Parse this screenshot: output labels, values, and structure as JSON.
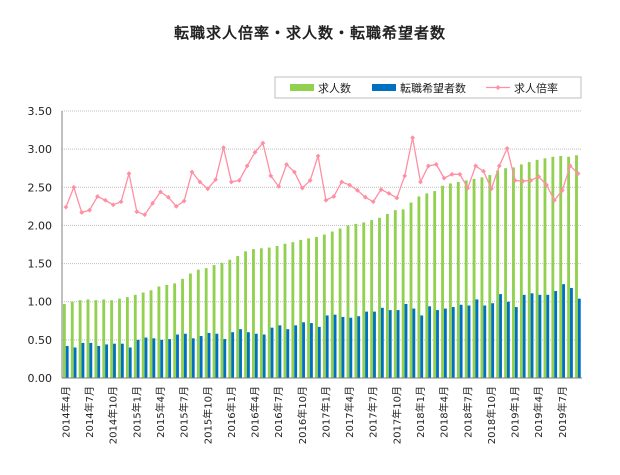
{
  "page": {
    "title": "転職求人倍率・求人数・転職希望者数"
  },
  "colors": {
    "jobs": "#92D050",
    "seekers": "#0070C0",
    "ratio": "#FF8FA3",
    "grid": "#BFBFBF",
    "axis": "#808080"
  },
  "chart_data": {
    "type": "bar",
    "legend": {
      "position": "top-right",
      "entries": [
        "求人数",
        "転職希望者数",
        "求人倍率"
      ]
    },
    "y_ticks": [
      "0.00",
      "0.50",
      "1.00",
      "1.50",
      "2.00",
      "2.50",
      "3.00",
      "3.50"
    ],
    "ylim": [
      0,
      3.5
    ],
    "grid": true,
    "x_tick_labels": [
      "2014年4月",
      "2014年7月",
      "2014年10月",
      "2015年1月",
      "2015年4月",
      "2015年7月",
      "2015年10月",
      "2016年1月",
      "2016年4月",
      "2016年7月",
      "2016年10月",
      "2017年1月",
      "2017年4月",
      "2017年7月",
      "2017年10月",
      "2018年1月",
      "2018年4月",
      "2018年7月",
      "2018年10月",
      "2019年1月",
      "2019年4月",
      "2019年7月"
    ],
    "categories": [
      "2014-04",
      "2014-05",
      "2014-06",
      "2014-07",
      "2014-08",
      "2014-09",
      "2014-10",
      "2014-11",
      "2014-12",
      "2015-01",
      "2015-02",
      "2015-03",
      "2015-04",
      "2015-05",
      "2015-06",
      "2015-07",
      "2015-08",
      "2015-09",
      "2015-10",
      "2015-11",
      "2015-12",
      "2016-01",
      "2016-02",
      "2016-03",
      "2016-04",
      "2016-05",
      "2016-06",
      "2016-07",
      "2016-08",
      "2016-09",
      "2016-10",
      "2016-11",
      "2016-12",
      "2017-01",
      "2017-02",
      "2017-03",
      "2017-04",
      "2017-05",
      "2017-06",
      "2017-07",
      "2017-08",
      "2017-09",
      "2017-10",
      "2017-11",
      "2017-12",
      "2018-01",
      "2018-02",
      "2018-03",
      "2018-04",
      "2018-05",
      "2018-06",
      "2018-07",
      "2018-08",
      "2018-09",
      "2018-10",
      "2018-11",
      "2018-12",
      "2019-01",
      "2019-02",
      "2019-03",
      "2019-04",
      "2019-05",
      "2019-06",
      "2019-07",
      "2019-08",
      "2019-09"
    ],
    "series": [
      {
        "name": "求人数",
        "type": "bar",
        "values": [
          0.97,
          1.0,
          1.02,
          1.03,
          1.02,
          1.03,
          1.02,
          1.04,
          1.06,
          1.09,
          1.12,
          1.15,
          1.2,
          1.22,
          1.24,
          1.3,
          1.37,
          1.42,
          1.44,
          1.48,
          1.51,
          1.55,
          1.6,
          1.66,
          1.69,
          1.7,
          1.71,
          1.73,
          1.76,
          1.78,
          1.81,
          1.83,
          1.85,
          1.88,
          1.92,
          1.96,
          2.0,
          2.02,
          2.04,
          2.07,
          2.1,
          2.15,
          2.2,
          2.21,
          2.3,
          2.38,
          2.42,
          2.45,
          2.52,
          2.55,
          2.57,
          2.59,
          2.61,
          2.63,
          2.66,
          2.72,
          2.75,
          2.76,
          2.8,
          2.83,
          2.86,
          2.88,
          2.9,
          2.91,
          2.9,
          2.92
        ]
      },
      {
        "name": "転職希望者数",
        "type": "bar",
        "values": [
          0.42,
          0.4,
          0.46,
          0.46,
          0.42,
          0.44,
          0.45,
          0.45,
          0.4,
          0.5,
          0.53,
          0.52,
          0.5,
          0.51,
          0.57,
          0.58,
          0.52,
          0.55,
          0.59,
          0.58,
          0.51,
          0.6,
          0.64,
          0.6,
          0.58,
          0.57,
          0.66,
          0.69,
          0.64,
          0.69,
          0.73,
          0.72,
          0.67,
          0.82,
          0.83,
          0.8,
          0.79,
          0.81,
          0.87,
          0.87,
          0.92,
          0.89,
          0.89,
          0.97,
          0.91,
          0.82,
          0.94,
          0.89,
          0.91,
          0.93,
          0.96,
          0.95,
          1.03,
          0.95,
          0.98,
          1.1,
          1.0,
          0.93,
          1.09,
          1.11,
          1.09,
          1.09,
          1.14,
          1.23,
          1.18,
          1.04
        ]
      },
      {
        "name": "求人倍率",
        "type": "line",
        "values": [
          2.24,
          2.5,
          2.17,
          2.2,
          2.38,
          2.33,
          2.27,
          2.31,
          2.68,
          2.18,
          2.14,
          2.29,
          2.44,
          2.37,
          2.25,
          2.32,
          2.7,
          2.57,
          2.48,
          2.6,
          3.02,
          2.57,
          2.59,
          2.78,
          2.96,
          3.08,
          2.65,
          2.51,
          2.8,
          2.7,
          2.49,
          2.59,
          2.91,
          2.33,
          2.38,
          2.57,
          2.53,
          2.46,
          2.37,
          2.31,
          2.47,
          2.42,
          2.36,
          2.65,
          3.15,
          2.57,
          2.78,
          2.8,
          2.62,
          2.67,
          2.67,
          2.49,
          2.78,
          2.71,
          2.48,
          2.78,
          3.01,
          2.59,
          2.58,
          2.59,
          2.64,
          2.53,
          2.33,
          2.46,
          2.78,
          2.68
        ]
      }
    ]
  }
}
